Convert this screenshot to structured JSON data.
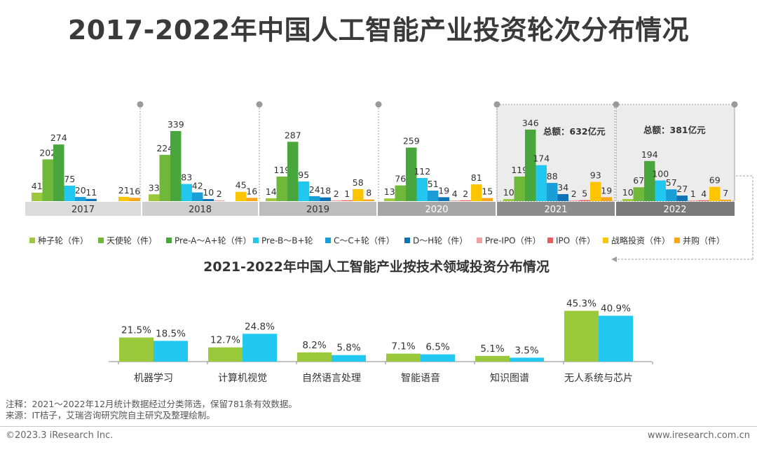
{
  "page": {
    "title": "2017-2022年中国人工智能产业投资轮次分布情况",
    "notes": [
      "注释：2021～2022年12月统计数据经过分类筛选，保留781条有效数据。",
      "来源：IT桔子，艾瑞咨询研究院自主研究及整理绘制。"
    ],
    "copyright": "©2023.3 iResearch Inc.",
    "website": "www.iresearch.com.cn"
  },
  "colors": {
    "seed": "#9bc83d",
    "angel": "#6fb83a",
    "pre_a": "#49a63c",
    "pre_b": "#22c7ef",
    "c": "#1a9ed8",
    "d_h": "#0f74b6",
    "pre_ipo": "#f2a0a0",
    "ipo": "#e85d5d",
    "strategic": "#fdc400",
    "ma": "#f9a61b",
    "y2021": "#9ac93b",
    "y2022": "#22c8ef"
  },
  "chart_data": [
    {
      "type": "bar",
      "title": "2017-2022年中国人工智能产业投资轮次分布情况",
      "categories": [
        "2017",
        "2018",
        "2019",
        "2020",
        "2021",
        "2022"
      ],
      "series": [
        {
          "name": "种子轮（件）",
          "values": [
            41,
            33,
            14,
            13,
            10,
            10
          ]
        },
        {
          "name": "天使轮（件）",
          "values": [
            202,
            224,
            119,
            76,
            119,
            67
          ]
        },
        {
          "name": "Pre-A～A+轮（件）",
          "values": [
            274,
            339,
            287,
            259,
            346,
            194
          ]
        },
        {
          "name": "Pre-B～B+轮",
          "values": [
            75,
            83,
            95,
            112,
            174,
            100
          ]
        },
        {
          "name": "C～C+轮（件）",
          "values": [
            20,
            42,
            24,
            51,
            88,
            57
          ]
        },
        {
          "name": "D～H轮（件）",
          "values": [
            11,
            10,
            18,
            19,
            34,
            27
          ]
        },
        {
          "name": "Pre-IPO（件）",
          "values": [
            null,
            2,
            2,
            4,
            2,
            1
          ]
        },
        {
          "name": "IPO（件）",
          "values": [
            null,
            null,
            1,
            2,
            5,
            4
          ]
        },
        {
          "name": "战略投资（件）",
          "values": [
            21,
            45,
            58,
            81,
            93,
            69
          ]
        },
        {
          "name": "并购（件）",
          "values": [
            16,
            16,
            8,
            15,
            19,
            7
          ]
        }
      ],
      "annotations": [
        "总额：632亿元",
        "总额：381亿元"
      ],
      "ylim": [
        0,
        360
      ]
    },
    {
      "type": "bar",
      "title": "2021-2022年中国人工智能产业按技术领域投资分布情况",
      "categories": [
        "机器学习",
        "计算机视觉",
        "自然语言处理",
        "智能语音",
        "知识图谱",
        "无人系统与芯片"
      ],
      "series": [
        {
          "name": "2021",
          "values": [
            21.5,
            12.7,
            8.2,
            7.1,
            5.1,
            45.3
          ]
        },
        {
          "name": "2022",
          "values": [
            18.5,
            24.8,
            5.8,
            6.5,
            3.5,
            40.9
          ]
        }
      ],
      "value_suffix": "%",
      "ylim": [
        0,
        50
      ]
    }
  ]
}
